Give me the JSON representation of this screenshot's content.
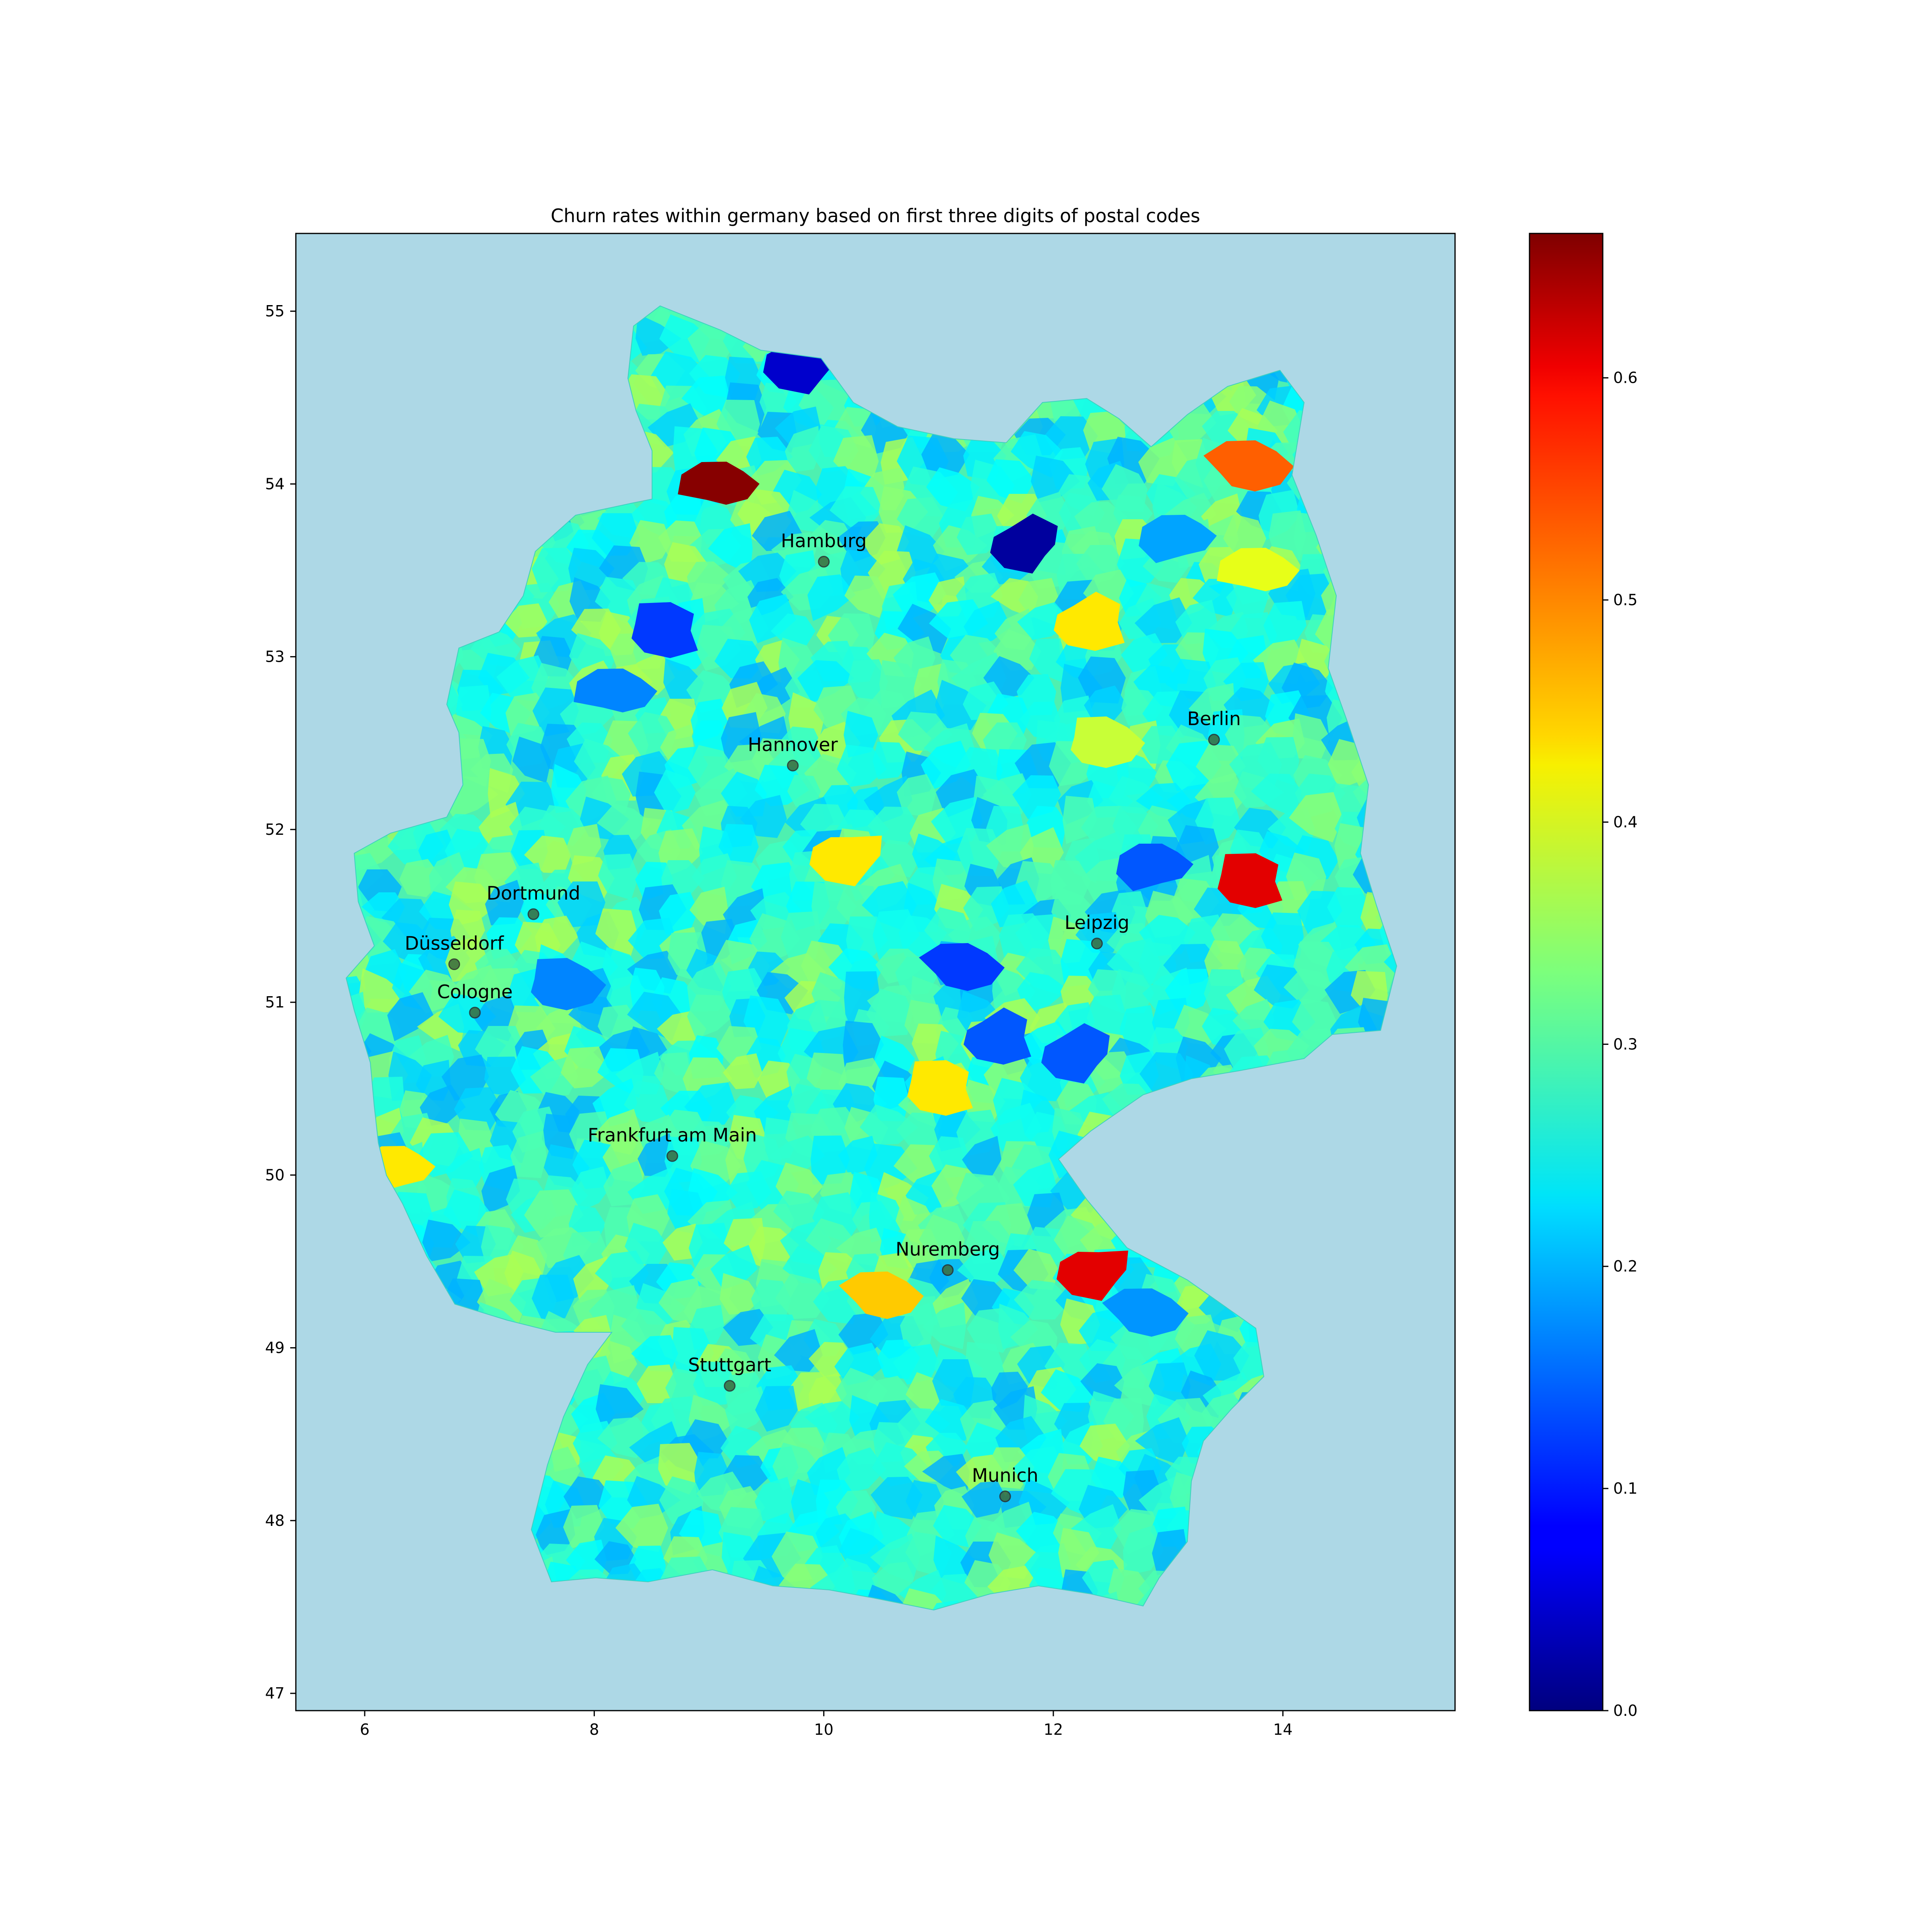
{
  "title": "Churn rates within germany based on first three digits of postal codes",
  "map": {
    "background_color": "#add8e6",
    "colormap": "jet",
    "xlim": [
      5.4,
      15.5
    ],
    "ylim": [
      46.9,
      55.45
    ],
    "x_ticks": [
      6,
      8,
      10,
      12,
      14
    ],
    "y_ticks": [
      47,
      48,
      49,
      50,
      51,
      52,
      53,
      54,
      55
    ],
    "cities": [
      {
        "name": "Hamburg",
        "lon": 10.0,
        "lat": 53.55
      },
      {
        "name": "Hannover",
        "lon": 9.73,
        "lat": 52.37
      },
      {
        "name": "Berlin",
        "lon": 13.4,
        "lat": 52.52
      },
      {
        "name": "Dortmund",
        "lon": 7.47,
        "lat": 51.51
      },
      {
        "name": "Düsseldorf",
        "lon": 6.78,
        "lat": 51.22
      },
      {
        "name": "Cologne",
        "lon": 6.96,
        "lat": 50.94
      },
      {
        "name": "Leipzig",
        "lon": 12.38,
        "lat": 51.34
      },
      {
        "name": "Frankfurt am Main",
        "lon": 8.68,
        "lat": 50.11
      },
      {
        "name": "Nuremberg",
        "lon": 11.08,
        "lat": 49.45
      },
      {
        "name": "Stuttgart",
        "lon": 9.18,
        "lat": 48.78
      },
      {
        "name": "Munich",
        "lon": 11.58,
        "lat": 48.14
      }
    ],
    "highlight_regions": [
      {
        "lon": 13.7,
        "lat": 51.7,
        "value": 0.6
      },
      {
        "lon": 12.35,
        "lat": 49.45,
        "value": 0.6
      },
      {
        "lon": 9.1,
        "lat": 54.0,
        "value": 0.66
      },
      {
        "lon": 13.7,
        "lat": 54.1,
        "value": 0.52
      },
      {
        "lon": 12.3,
        "lat": 53.2,
        "value": 0.43
      },
      {
        "lon": 6.3,
        "lat": 50.05,
        "value": 0.43
      },
      {
        "lon": 10.5,
        "lat": 49.3,
        "value": 0.45
      },
      {
        "lon": 11.0,
        "lat": 50.5,
        "value": 0.43
      },
      {
        "lon": 10.2,
        "lat": 51.85,
        "value": 0.43
      },
      {
        "lon": 13.8,
        "lat": 53.5,
        "value": 0.4
      },
      {
        "lon": 12.4,
        "lat": 52.5,
        "value": 0.38
      },
      {
        "lon": 11.75,
        "lat": 53.65,
        "value": 0.02
      },
      {
        "lon": 12.9,
        "lat": 51.8,
        "value": 0.14
      },
      {
        "lon": 11.2,
        "lat": 51.2,
        "value": 0.12
      },
      {
        "lon": 8.6,
        "lat": 53.15,
        "value": 0.12
      },
      {
        "lon": 9.8,
        "lat": 54.7,
        "value": 0.05
      },
      {
        "lon": 8.2,
        "lat": 52.8,
        "value": 0.17
      },
      {
        "lon": 7.7,
        "lat": 51.1,
        "value": 0.17
      },
      {
        "lon": 12.2,
        "lat": 50.7,
        "value": 0.14
      },
      {
        "lon": 13.1,
        "lat": 53.7,
        "value": 0.19
      },
      {
        "lon": 12.8,
        "lat": 49.2,
        "value": 0.18
      },
      {
        "lon": 11.5,
        "lat": 50.8,
        "value": 0.14
      }
    ]
  },
  "colorbar": {
    "min": 0.0,
    "max": 0.665,
    "ticks": [
      0.0,
      0.1,
      0.2,
      0.3,
      0.4,
      0.5,
      0.6
    ],
    "tick_labels": [
      "0.0",
      "0.1",
      "0.2",
      "0.3",
      "0.4",
      "0.5",
      "0.6"
    ]
  }
}
